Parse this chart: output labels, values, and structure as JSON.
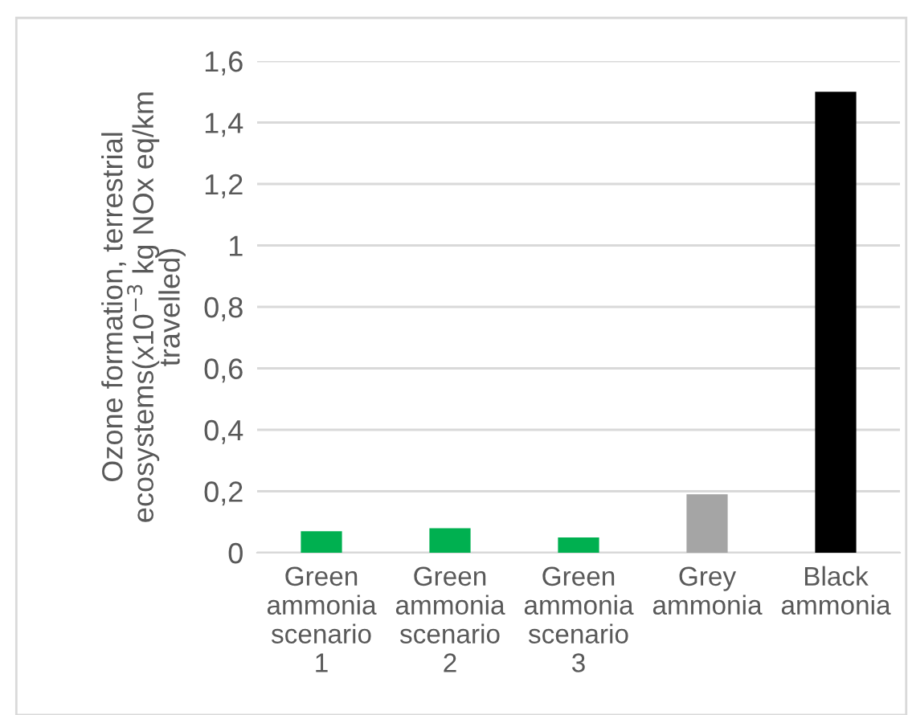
{
  "chart_data": {
    "type": "bar",
    "ylabel": "Ozone formation, terrestrial\necosystems(x10$^{−3}$ kg NOx eq/km\ntravelled)",
    "categories": [
      "Green\nammonia\nscenario\n1",
      "Green\nammonia\nscenario\n2",
      "Green\nammonia\nscenario\n3",
      "Grey\nammonia",
      "Black\nammonia"
    ],
    "values": [
      0.07,
      0.08,
      0.05,
      0.19,
      1.5
    ],
    "colors": [
      "#00b050",
      "#00b050",
      "#00b050",
      "#a5a5a5",
      "#000000"
    ],
    "ylim": [
      0,
      1.6
    ],
    "yticks": [
      0,
      {
        "value": 0.2,
        "label": "0,2"
      },
      {
        "value": 0.4,
        "label": "0,4"
      },
      {
        "value": 0.6,
        "label": "0,6"
      },
      {
        "value": 0.8,
        "label": "0,8"
      },
      1,
      {
        "value": 1.2,
        "label": "1,2"
      },
      {
        "value": 1.4,
        "label": "1,4"
      },
      {
        "value": 1.6,
        "label": "1,6"
      }
    ],
    "grid": "y"
  }
}
